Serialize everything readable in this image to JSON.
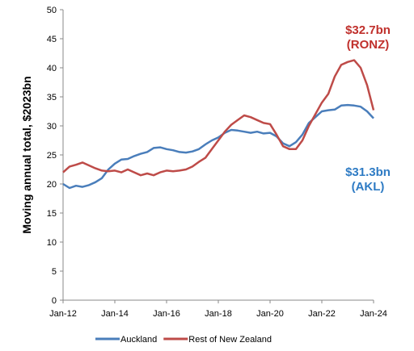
{
  "chart_data": {
    "type": "line",
    "y_label": "Moving annual total, $2023bn",
    "categories": [
      "Jan-12",
      null,
      null,
      null,
      null,
      null,
      null,
      null,
      "Jan-14",
      null,
      null,
      null,
      null,
      null,
      null,
      null,
      "Jan-16",
      null,
      null,
      null,
      null,
      null,
      null,
      null,
      "Jan-18",
      null,
      null,
      null,
      null,
      null,
      null,
      null,
      "Jan-20",
      null,
      null,
      null,
      null,
      null,
      null,
      null,
      "Jan-22",
      null,
      null,
      null,
      null,
      null,
      null,
      null,
      "Jan-24"
    ],
    "series": [
      {
        "name": "Auckland",
        "color": "#4a7ebb",
        "values": [
          20,
          19.3,
          19.7,
          19.5,
          19.8,
          20.3,
          21,
          22.5,
          23.5,
          24.2,
          24.3,
          24.8,
          25.2,
          25.5,
          26.2,
          26.3,
          26,
          25.8,
          25.5,
          25.4,
          25.6,
          26,
          26.8,
          27.5,
          28,
          28.8,
          29.3,
          29.2,
          29,
          28.8,
          29,
          28.7,
          28.8,
          28.2,
          27,
          26.5,
          27.2,
          28.5,
          30.5,
          31.5,
          32.5,
          32.7,
          32.8,
          33.5,
          33.6,
          33.5,
          33.3,
          32.5,
          31.3
        ]
      },
      {
        "name": "Rest of New Zealand",
        "color": "#be4b48",
        "values": [
          22,
          23,
          23.3,
          23.7,
          23.2,
          22.7,
          22.3,
          22.2,
          22.3,
          22,
          22.5,
          22,
          21.5,
          21.8,
          21.5,
          22,
          22.3,
          22.2,
          22.3,
          22.5,
          23,
          23.8,
          24.5,
          26,
          27.5,
          29,
          30.2,
          31,
          31.8,
          31.5,
          31,
          30.5,
          30.3,
          28.5,
          26.5,
          26,
          26,
          27.5,
          30,
          32,
          34,
          35.5,
          38.5,
          40.5,
          41,
          41.3,
          40,
          37,
          32.7
        ]
      }
    ],
    "annotations": [
      {
        "lines": [
          "$32.7bn",
          "(RONZ)"
        ],
        "color": "#c0302c"
      },
      {
        "lines": [
          "$31.3bn",
          "(AKL)"
        ],
        "color": "#2e7bc4"
      }
    ],
    "ylim": [
      0,
      50
    ],
    "yticks": [
      0,
      5,
      10,
      15,
      20,
      25,
      30,
      35,
      40,
      45,
      50
    ],
    "grid": false,
    "legend": "bottom"
  }
}
